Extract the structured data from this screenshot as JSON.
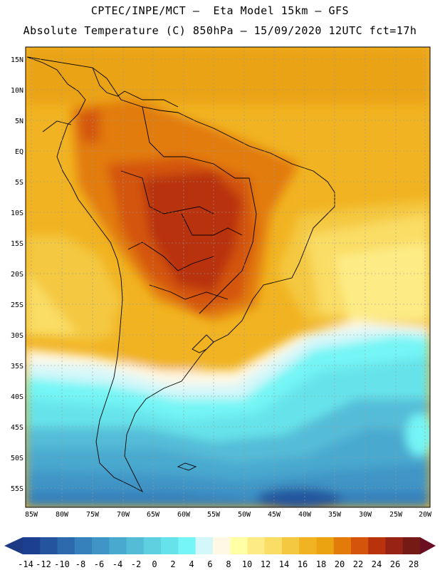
{
  "header": {
    "line1": "CPTEC/INPE/MCT –  Eta Model 15km – GFS",
    "line2": "Absolute Temperature (C) 850hPa – 15/09/2020 12UTC fct=17h"
  },
  "map": {
    "lat_labels": [
      "15N",
      "10N",
      "5N",
      "EQ",
      "5S",
      "10S",
      "15S",
      "20S",
      "25S",
      "30S",
      "35S",
      "40S",
      "45S",
      "50S",
      "55S"
    ],
    "lon_labels": [
      "85W",
      "80W",
      "75W",
      "70W",
      "65W",
      "60W",
      "55W",
      "50W",
      "45W",
      "40W",
      "35W",
      "30W",
      "25W",
      "20W"
    ]
  },
  "colorbar": {
    "labels": [
      "-14",
      "-12",
      "-10",
      "-8",
      "-6",
      "-4",
      "-2",
      "0",
      "2",
      "4",
      "6",
      "8",
      "10",
      "12",
      "14",
      "16",
      "18",
      "20",
      "22",
      "24",
      "26",
      "28"
    ],
    "colors": [
      "#1d3f8f",
      "#24549e",
      "#2d6aad",
      "#3680bb",
      "#3f95c6",
      "#49a9cf",
      "#55bcd7",
      "#5ed0e0",
      "#66e3ea",
      "#75f5f5",
      "#d4f7fa",
      "#fff8e4",
      "#ffffa6",
      "#fdec86",
      "#fadd65",
      "#f4c840",
      "#f1b321",
      "#eba312",
      "#e27b0a",
      "#d4540b",
      "#b8330c",
      "#962313",
      "#751a14"
    ],
    "under_color": "#1d3a85",
    "over_color": "#6a0f23"
  }
}
